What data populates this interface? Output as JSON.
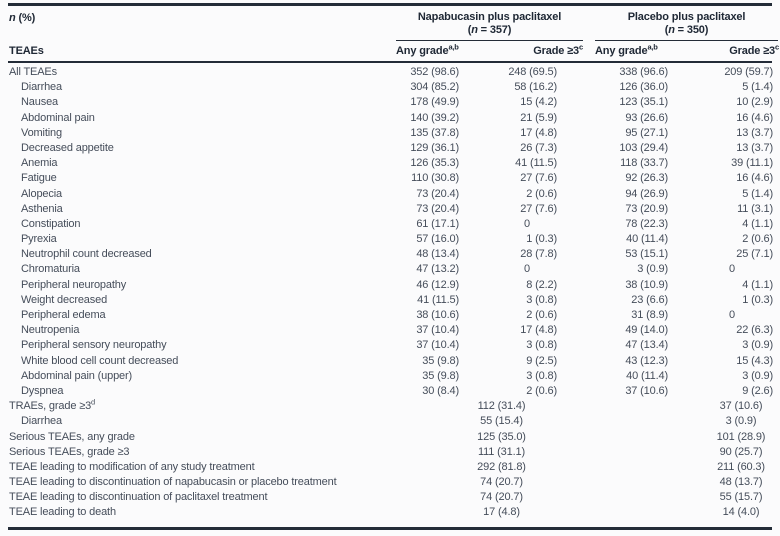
{
  "table": {
    "corner_top_pre": "n",
    "corner_top_post": " (%)",
    "corner_bottom": "TEAEs",
    "groups": [
      {
        "title": "Napabucasin plus paclitaxel",
        "n_pre": "(",
        "n_var": "n",
        "n_post": " = 357)",
        "col_any": "Any grade",
        "col_any_sup": "a,b",
        "col_g3": "Grade ≥3",
        "col_g3_sup": "c"
      },
      {
        "title": "Placebo plus paclitaxel",
        "n_pre": "(",
        "n_var": "n",
        "n_post": " = 350)",
        "col_any": "Any grade",
        "col_any_sup": "a,b",
        "col_g3": "Grade ≥3",
        "col_g3_sup": "c"
      }
    ],
    "rows": [
      {
        "label": "All TEAEs",
        "indent": 0,
        "cells": [
          "352 (98.6)",
          "248 (69.5)",
          "338 (96.6)",
          "209 (59.7)"
        ]
      },
      {
        "label": "Diarrhea",
        "indent": 1,
        "cells": [
          "304 (85.2)",
          "58 (16.2)",
          "126 (36.0)",
          "5 (1.4)"
        ]
      },
      {
        "label": "Nausea",
        "indent": 1,
        "cells": [
          "178 (49.9)",
          "15 (4.2)",
          "123 (35.1)",
          "10 (2.9)"
        ]
      },
      {
        "label": "Abdominal pain",
        "indent": 1,
        "cells": [
          "140 (39.2)",
          "21 (5.9)",
          "93 (26.6)",
          "16 (4.6)"
        ]
      },
      {
        "label": "Vomiting",
        "indent": 1,
        "cells": [
          "135 (37.8)",
          "17 (4.8)",
          "95 (27.1)",
          "13 (3.7)"
        ]
      },
      {
        "label": "Decreased appetite",
        "indent": 1,
        "cells": [
          "129 (36.1)",
          "26 (7.3)",
          "103 (29.4)",
          "13 (3.7)"
        ]
      },
      {
        "label": "Anemia",
        "indent": 1,
        "cells": [
          "126 (35.3)",
          "41 (11.5)",
          "118 (33.7)",
          "39 (11.1)"
        ]
      },
      {
        "label": "Fatigue",
        "indent": 1,
        "cells": [
          "110 (30.8)",
          "27 (7.6)",
          "92 (26.3)",
          "16 (4.6)"
        ]
      },
      {
        "label": "Alopecia",
        "indent": 1,
        "cells": [
          "73 (20.4)",
          "2 (0.6)",
          "94 (26.9)",
          "5 (1.4)"
        ]
      },
      {
        "label": "Asthenia",
        "indent": 1,
        "cells": [
          "73 (20.4)",
          "27 (7.6)",
          "73 (20.9)",
          "11 (3.1)"
        ]
      },
      {
        "label": "Constipation",
        "indent": 1,
        "cells": [
          "61 (17.1)",
          "0",
          "78 (22.3)",
          "4 (1.1)"
        ]
      },
      {
        "label": "Pyrexia",
        "indent": 1,
        "cells": [
          "57 (16.0)",
          "1 (0.3)",
          "40 (11.4)",
          "2 (0.6)"
        ]
      },
      {
        "label": "Neutrophil count decreased",
        "indent": 1,
        "cells": [
          "48 (13.4)",
          "28 (7.8)",
          "53 (15.1)",
          "25 (7.1)"
        ]
      },
      {
        "label": "Chromaturia",
        "indent": 1,
        "cells": [
          "47 (13.2)",
          "0",
          "3 (0.9)",
          "0"
        ]
      },
      {
        "label": "Peripheral neuropathy",
        "indent": 1,
        "cells": [
          "46 (12.9)",
          "8 (2.2)",
          "38 (10.9)",
          "4 (1.1)"
        ]
      },
      {
        "label": "Weight decreased",
        "indent": 1,
        "cells": [
          "41 (11.5)",
          "3 (0.8)",
          "23 (6.6)",
          "1 (0.3)"
        ]
      },
      {
        "label": "Peripheral edema",
        "indent": 1,
        "cells": [
          "38 (10.6)",
          "2 (0.6)",
          "31 (8.9)",
          "0"
        ]
      },
      {
        "label": "Neutropenia",
        "indent": 1,
        "cells": [
          "37 (10.4)",
          "17 (4.8)",
          "49 (14.0)",
          "22 (6.3)"
        ]
      },
      {
        "label": "Peripheral sensory neuropathy",
        "indent": 1,
        "cells": [
          "37 (10.4)",
          "3 (0.8)",
          "47 (13.4)",
          "3 (0.9)"
        ]
      },
      {
        "label": "White blood cell count decreased",
        "indent": 1,
        "cells": [
          "35 (9.8)",
          "9 (2.5)",
          "43 (12.3)",
          "15 (4.3)"
        ]
      },
      {
        "label": "Abdominal pain (upper)",
        "indent": 1,
        "cells": [
          "35 (9.8)",
          "3 (0.8)",
          "40 (11.4)",
          "3 (0.9)"
        ]
      },
      {
        "label": "Dyspnea",
        "indent": 1,
        "cells": [
          "30 (8.4)",
          "2 (0.6)",
          "37 (10.6)",
          "9 (2.6)"
        ]
      },
      {
        "label": "TRAEs, grade ≥3",
        "sup": "d",
        "indent": 0,
        "span": true,
        "cells": [
          "112 (31.4)",
          "37 (10.6)"
        ]
      },
      {
        "label": "Diarrhea",
        "indent": 1,
        "span": true,
        "cells": [
          "55 (15.4)",
          "3 (0.9)"
        ]
      },
      {
        "label": "Serious TEAEs, any grade",
        "indent": 0,
        "span": true,
        "cells": [
          "125 (35.0)",
          "101 (28.9)"
        ]
      },
      {
        "label": "Serious TEAEs, grade ≥3",
        "indent": 0,
        "span": true,
        "cells": [
          "111 (31.1)",
          "90 (25.7)"
        ]
      },
      {
        "label": "TEAE leading to modification of any study treatment",
        "indent": 0,
        "span": true,
        "cells": [
          "292 (81.8)",
          "211 (60.3)"
        ]
      },
      {
        "label": "TEAE leading to discontinuation of napabucasin or placebo treatment",
        "indent": 0,
        "span": true,
        "cells": [
          "74 (20.7)",
          "48 (13.7)"
        ]
      },
      {
        "label": "TEAE leading to discontinuation of paclitaxel treatment",
        "indent": 0,
        "span": true,
        "cells": [
          "74 (20.7)",
          "55 (15.7)"
        ]
      },
      {
        "label": "TEAE leading to death",
        "indent": 0,
        "span": true,
        "cells": [
          "17 (4.8)",
          "14 (4.0)"
        ]
      }
    ],
    "colors": {
      "rule": "#242c38",
      "header_text": "#202936",
      "body_text": "#454d5a",
      "background": "#fbfbfc"
    }
  }
}
